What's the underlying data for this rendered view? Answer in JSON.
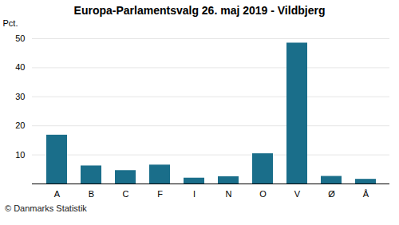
{
  "chart_data": {
    "type": "bar",
    "title": "Europa-Parlamentsvalg 26. maj 2019 - Vildbjerg",
    "categories": [
      "A",
      "B",
      "C",
      "F",
      "I",
      "N",
      "O",
      "V",
      "Ø",
      "Å"
    ],
    "values": [
      16.8,
      6.2,
      4.6,
      6.5,
      2.0,
      2.5,
      10.4,
      48.5,
      2.6,
      1.6
    ],
    "color": "#1a6e8a",
    "ylabel": "Pct.",
    "caption": "© Danmarks Statistik",
    "ylim": [
      0,
      50
    ],
    "yticks": [
      10,
      20,
      30,
      40,
      50
    ],
    "grid": true
  }
}
